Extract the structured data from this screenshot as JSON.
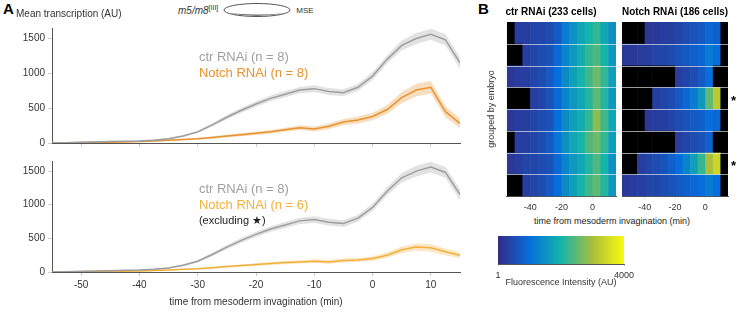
{
  "panel_labels": [
    "A",
    "B"
  ],
  "header": {
    "label": "m5/m8",
    "superscript": "[III]",
    "region": "MSE"
  },
  "colorbar": {
    "range": [
      1,
      4000
    ],
    "ticks": [
      1,
      4000
    ],
    "label": "Fluorescence Intensity (AU)"
  },
  "chart_data": [
    {
      "type": "line",
      "panel": "A",
      "title": "Mean transcription (AU)",
      "x": [
        -55,
        -52.5,
        -50,
        -47.5,
        -45,
        -42.5,
        -40,
        -37.5,
        -35,
        -32.5,
        -30,
        -27.5,
        -25,
        -22.5,
        -20,
        -17.5,
        -15,
        -12.5,
        -10,
        -7.5,
        -5,
        -2.5,
        0,
        2.5,
        5,
        7.5,
        10,
        12.5,
        15
      ],
      "xlim": [
        -55,
        15
      ],
      "xticks": [
        -50,
        -40,
        -30,
        -20,
        -10,
        0,
        10
      ],
      "ylim": [
        0,
        1650
      ],
      "yticks": [
        0,
        500,
        1000,
        1500
      ],
      "grid": false,
      "tick_labels": "y",
      "series": [
        {
          "name": "ctr RNAi (n = 8)",
          "color": "#9e9e9e",
          "values": [
            0,
            5,
            10,
            15,
            20,
            25,
            30,
            40,
            60,
            100,
            160,
            260,
            370,
            470,
            560,
            640,
            700,
            760,
            780,
            740,
            720,
            800,
            960,
            1200,
            1400,
            1500,
            1560,
            1480,
            1150
          ],
          "errors": [
            2,
            3,
            4,
            5,
            6,
            6,
            8,
            10,
            12,
            15,
            20,
            25,
            30,
            35,
            40,
            40,
            45,
            45,
            50,
            50,
            50,
            50,
            55,
            60,
            70,
            80,
            80,
            80,
            80
          ]
        },
        {
          "name": "Notch RNAi (n = 8)",
          "color": "#e8922e",
          "values": [
            0,
            3,
            6,
            10,
            12,
            15,
            20,
            30,
            40,
            50,
            60,
            80,
            100,
            120,
            140,
            160,
            190,
            220,
            200,
            240,
            300,
            330,
            380,
            480,
            650,
            760,
            800,
            450,
            280
          ],
          "errors": [
            2,
            2,
            3,
            4,
            5,
            5,
            6,
            8,
            10,
            12,
            15,
            18,
            20,
            22,
            25,
            28,
            30,
            35,
            35,
            40,
            45,
            50,
            55,
            65,
            80,
            90,
            90,
            80,
            70
          ]
        }
      ]
    },
    {
      "type": "line",
      "panel": "A",
      "xlabel": "time from mesoderm invagination (min)",
      "annotation": "(excluding ★)",
      "x": [
        -55,
        -52.5,
        -50,
        -47.5,
        -45,
        -42.5,
        -40,
        -37.5,
        -35,
        -32.5,
        -30,
        -27.5,
        -25,
        -22.5,
        -20,
        -17.5,
        -15,
        -12.5,
        -10,
        -7.5,
        -5,
        -2.5,
        0,
        2.5,
        5,
        7.5,
        10,
        12.5,
        15
      ],
      "xlim": [
        -55,
        15
      ],
      "xticks": [
        -50,
        -40,
        -30,
        -20,
        -10,
        0,
        10
      ],
      "ylim": [
        0,
        1650
      ],
      "yticks": [
        0,
        500,
        1000,
        1500
      ],
      "grid": false,
      "series": [
        {
          "name": "ctr RNAi (n = 8)",
          "color": "#9e9e9e",
          "values": [
            0,
            5,
            10,
            15,
            20,
            25,
            30,
            40,
            60,
            100,
            160,
            260,
            370,
            470,
            560,
            640,
            700,
            760,
            780,
            740,
            720,
            800,
            960,
            1200,
            1400,
            1500,
            1560,
            1480,
            1150
          ],
          "errors": [
            2,
            3,
            4,
            5,
            6,
            6,
            8,
            10,
            12,
            15,
            20,
            25,
            30,
            35,
            40,
            40,
            45,
            45,
            50,
            50,
            50,
            50,
            55,
            60,
            70,
            80,
            80,
            80,
            80
          ]
        },
        {
          "name": "Notch RNAi (n = 6)",
          "color": "#f2b13c",
          "values": [
            0,
            3,
            5,
            8,
            10,
            12,
            15,
            22,
            30,
            40,
            50,
            65,
            80,
            95,
            110,
            125,
            140,
            150,
            160,
            150,
            170,
            180,
            200,
            250,
            330,
            370,
            360,
            300,
            250
          ],
          "errors": [
            2,
            2,
            3,
            3,
            4,
            4,
            5,
            6,
            8,
            10,
            12,
            14,
            16,
            18,
            20,
            22,
            25,
            25,
            28,
            28,
            30,
            30,
            35,
            40,
            50,
            55,
            55,
            50,
            45
          ]
        }
      ]
    },
    {
      "type": "heatmap",
      "panel": "B",
      "title": "ctr RNAi (233 cells)",
      "ylabel": "grouped by embryo",
      "xlabel": "time from mesoderm invagination (min)",
      "x_edges": [
        -55,
        -50,
        -45,
        -40,
        -35,
        -30,
        -25,
        -20,
        -15,
        -10,
        -5,
        0,
        5,
        10,
        15
      ],
      "xlim": [
        -55,
        15
      ],
      "xticks": [
        -40,
        -20,
        0
      ],
      "cells": [
        [
          null,
          300,
          300,
          400,
          400,
          500,
          700,
          1200,
          1500,
          1800,
          2000,
          2200,
          1800,
          1500
        ],
        [
          null,
          null,
          300,
          400,
          500,
          600,
          900,
          1300,
          1600,
          1900,
          2200,
          2400,
          2000,
          1600
        ],
        [
          200,
          300,
          300,
          400,
          500,
          700,
          1000,
          1400,
          1700,
          2000,
          2300,
          2600,
          2200,
          1700
        ],
        [
          null,
          null,
          null,
          300,
          400,
          600,
          900,
          1300,
          1600,
          1800,
          2100,
          2500,
          2100,
          1600
        ],
        [
          200,
          300,
          300,
          400,
          500,
          600,
          1000,
          1400,
          1700,
          1900,
          2200,
          2800,
          2300,
          1800
        ],
        [
          null,
          300,
          300,
          400,
          500,
          700,
          1100,
          1500,
          1800,
          2000,
          2400,
          2600,
          2200,
          1700
        ],
        [
          200,
          300,
          400,
          400,
          500,
          600,
          900,
          1300,
          1600,
          1800,
          2100,
          2400,
          2000,
          1500
        ],
        [
          null,
          null,
          300,
          400,
          500,
          700,
          1000,
          1400,
          1700,
          2000,
          2300,
          2500,
          2100,
          1600
        ]
      ]
    },
    {
      "type": "heatmap",
      "panel": "B",
      "title": "Notch RNAi (186 cells)",
      "x_edges": [
        -55,
        -50,
        -45,
        -40,
        -35,
        -30,
        -25,
        -20,
        -15,
        -10,
        -5,
        0,
        5,
        10,
        15
      ],
      "xlim": [
        -55,
        15
      ],
      "xticks": [
        -40,
        -20,
        0
      ],
      "marks": {
        "text": "*",
        "rows": [
          3,
          6
        ]
      },
      "cells": [
        [
          null,
          null,
          null,
          200,
          200,
          300,
          300,
          400,
          500,
          600,
          700,
          900,
          800,
          null
        ],
        [
          200,
          200,
          300,
          300,
          400,
          400,
          500,
          600,
          700,
          800,
          900,
          1200,
          1000,
          null
        ],
        [
          null,
          null,
          null,
          null,
          null,
          null,
          null,
          300,
          400,
          500,
          700,
          1000,
          null,
          null
        ],
        [
          null,
          null,
          null,
          null,
          300,
          400,
          500,
          700,
          900,
          1200,
          1600,
          2500,
          3200,
          null
        ],
        [
          null,
          null,
          null,
          200,
          300,
          300,
          400,
          500,
          600,
          700,
          800,
          1000,
          900,
          null
        ],
        [
          null,
          null,
          null,
          null,
          null,
          null,
          null,
          300,
          400,
          500,
          600,
          800,
          null,
          null
        ],
        [
          null,
          null,
          300,
          400,
          500,
          600,
          800,
          1000,
          1300,
          1700,
          2200,
          3000,
          3400,
          null
        ],
        [
          200,
          300,
          300,
          400,
          400,
          500,
          600,
          700,
          800,
          900,
          1000,
          1200,
          1000,
          null
        ]
      ]
    }
  ]
}
